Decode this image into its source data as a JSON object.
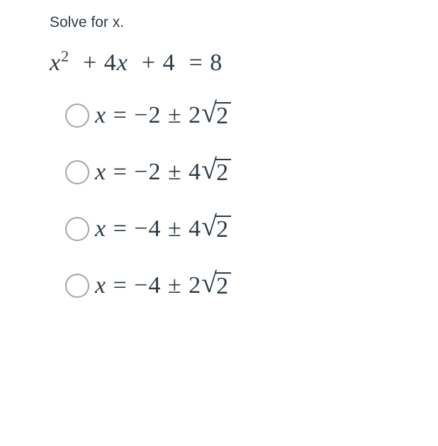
{
  "prompt": "Solve for x.",
  "equation": {
    "variable": "x",
    "exponent": "2",
    "term2_coeff": "4",
    "term2_var": "x",
    "constant": "4",
    "rhs": "8"
  },
  "options": [
    {
      "lhs_var": "x",
      "const": "−2",
      "pm": "±",
      "coeff": "2",
      "radicand": "2"
    },
    {
      "lhs_var": "x",
      "const": "−2",
      "pm": "±",
      "coeff": "4",
      "radicand": "2"
    },
    {
      "lhs_var": "x",
      "const": "−4",
      "pm": "±",
      "coeff": "4",
      "radicand": "2"
    },
    {
      "lhs_var": "x",
      "const": "−4",
      "pm": "±",
      "coeff": "2",
      "radicand": "2"
    }
  ],
  "styling": {
    "background_color": "#ffffff",
    "text_color": "#2d3b45",
    "radio_border_color": "#a5a5a5",
    "prompt_fontsize": 21,
    "equation_fontsize": 34,
    "option_fontsize": 34,
    "radio_size": 34,
    "option_gap": 42,
    "font_family_prompt": "Segoe UI, Arial, sans-serif",
    "font_family_math": "Times New Roman, serif"
  }
}
